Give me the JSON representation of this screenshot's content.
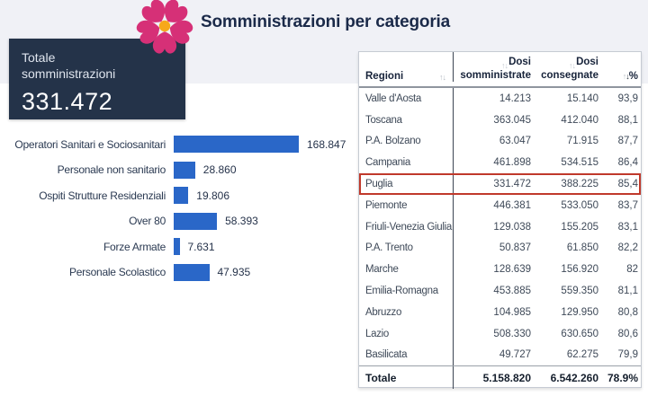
{
  "page": {
    "title": "Somministrazioni per categoria"
  },
  "kpi": {
    "label": "Totale somministrazioni",
    "value": "331.472"
  },
  "icons": {
    "flower": "primula-flower-icon",
    "sort_both": "↑↓",
    "sort_asc": "↑",
    "sort_desc": "↓"
  },
  "colors": {
    "top_band": "#f0f1f6",
    "kpi_box": "#243349",
    "bar_blue": "#2a67c8",
    "highlight_red": "#c0392b",
    "flower_pink": "#d63077",
    "flower_center": "#f7a81b",
    "title_text": "#1b2a49"
  },
  "chart_data": [
    {
      "type": "bar",
      "title": "Somministrazioni per categoria",
      "orientation": "horizontal",
      "categories": [
        "Operatori Sanitari e Sociosanitari",
        "Personale non sanitario",
        "Ospiti Strutture Residenziali",
        "Over 80",
        "Forze Armate",
        "Personale Scolastico"
      ],
      "values": [
        168847,
        28860,
        19806,
        58393,
        7631,
        47935
      ],
      "value_labels": [
        "168.847",
        "28.860",
        "19.806",
        "58.393",
        "7.631",
        "47.935"
      ],
      "xlim": [
        0,
        168847
      ],
      "grid": false,
      "legend": false,
      "bar_color": "#2a67c8"
    },
    {
      "type": "table",
      "columns": [
        {
          "label": "Regioni",
          "sortable": true,
          "active": false
        },
        {
          "label": "Dosi somministrate",
          "sortable": true,
          "active": false
        },
        {
          "label": "Dosi consegnate",
          "sortable": true,
          "active": false
        },
        {
          "label": "%",
          "sortable": true,
          "active": true,
          "direction": "desc"
        }
      ],
      "rows": [
        {
          "regione": "Valle d'Aosta",
          "dosi_somministrate": "14.213",
          "dosi_consegnate": "15.140",
          "pct": "93,9",
          "highlight": false
        },
        {
          "regione": "Toscana",
          "dosi_somministrate": "363.045",
          "dosi_consegnate": "412.040",
          "pct": "88,1",
          "highlight": false
        },
        {
          "regione": "P.A. Bolzano",
          "dosi_somministrate": "63.047",
          "dosi_consegnate": "71.915",
          "pct": "87,7",
          "highlight": false
        },
        {
          "regione": "Campania",
          "dosi_somministrate": "461.898",
          "dosi_consegnate": "534.515",
          "pct": "86,4",
          "highlight": false
        },
        {
          "regione": "Puglia",
          "dosi_somministrate": "331.472",
          "dosi_consegnate": "388.225",
          "pct": "85,4",
          "highlight": true
        },
        {
          "regione": "Piemonte",
          "dosi_somministrate": "446.381",
          "dosi_consegnate": "533.050",
          "pct": "83,7",
          "highlight": false
        },
        {
          "regione": "Friuli-Venezia Giulia",
          "dosi_somministrate": "129.038",
          "dosi_consegnate": "155.205",
          "pct": "83,1",
          "highlight": false
        },
        {
          "regione": "P.A. Trento",
          "dosi_somministrate": "50.837",
          "dosi_consegnate": "61.850",
          "pct": "82,2",
          "highlight": false
        },
        {
          "regione": "Marche",
          "dosi_somministrate": "128.639",
          "dosi_consegnate": "156.920",
          "pct": "82",
          "highlight": false
        },
        {
          "regione": "Emilia-Romagna",
          "dosi_somministrate": "453.885",
          "dosi_consegnate": "559.350",
          "pct": "81,1",
          "highlight": false
        },
        {
          "regione": "Abruzzo",
          "dosi_somministrate": "104.985",
          "dosi_consegnate": "129.950",
          "pct": "80,8",
          "highlight": false
        },
        {
          "regione": "Lazio",
          "dosi_somministrate": "508.330",
          "dosi_consegnate": "630.650",
          "pct": "80,6",
          "highlight": false
        },
        {
          "regione": "Basilicata",
          "dosi_somministrate": "49.727",
          "dosi_consegnate": "62.275",
          "pct": "79,9",
          "highlight": false
        }
      ],
      "total_row": {
        "regione": "Totale",
        "dosi_somministrate": "5.158.820",
        "dosi_consegnate": "6.542.260",
        "pct": "78.9%"
      }
    }
  ]
}
